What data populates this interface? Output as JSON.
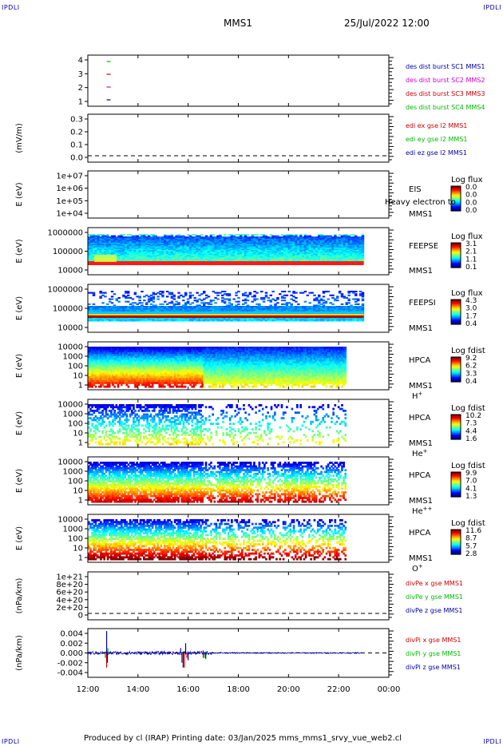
{
  "corner_mark": "IPDLI",
  "header": {
    "spacecraft": "MMS1",
    "datetime": "25/Jul/2022 12:00"
  },
  "footer": {
    "text": "Produced by cl (IRAP)   Printing date: 03/Jan/2025   mms_mms1_srvy_vue_web2.cl"
  },
  "colors": {
    "red": "#cc0000",
    "green": "#00bb00",
    "blue": "#0000aa",
    "magenta": "#cc00cc"
  },
  "x_axis": {
    "ticks": [
      "12:00",
      "14:00",
      "16:00",
      "18:00",
      "20:00",
      "22:00",
      "00:00"
    ],
    "range_hours": [
      12,
      24
    ]
  },
  "chart_data": [
    {
      "id": "des",
      "type": "scatter",
      "ylim": [
        0.5,
        4.5
      ],
      "yticks": [
        "4",
        "3",
        "2",
        "1"
      ],
      "ylabel": "",
      "series": [
        {
          "name": "des dist burst SC1 MMS1",
          "color": "#0000aa",
          "x": [
            12.75
          ],
          "y": [
            1
          ]
        },
        {
          "name": "des dist burst SC2 MMS2",
          "color": "#cc00cc",
          "x": [
            12.75
          ],
          "y": [
            2
          ]
        },
        {
          "name": "des dist burst SC3 MMS3",
          "color": "#cc0000",
          "x": [
            12.75
          ],
          "y": [
            3
          ]
        },
        {
          "name": "des dist burst SC4 MMS4",
          "color": "#00bb00",
          "x": [
            12.75
          ],
          "y": [
            4
          ]
        }
      ]
    },
    {
      "id": "edi",
      "type": "line",
      "ylabel": "(mV/m)",
      "yticks": [
        "0.3",
        "0.2",
        "0.1",
        "0.0"
      ],
      "ylim": [
        0,
        0.35
      ],
      "series": [
        {
          "name": "edi ex gse l2 MMS1",
          "color": "#cc0000"
        },
        {
          "name": "edi ey gse l2 MMS1",
          "color": "#00bb00"
        },
        {
          "name": "edi ez gse l2 MMS1",
          "color": "#0000aa"
        }
      ]
    },
    {
      "id": "eis",
      "type": "heatmap",
      "ylabel": "E (eV)",
      "yticks": [
        "1e+07",
        "1e+06",
        "1e+05",
        "1e+04"
      ],
      "instrument": [
        "EIS",
        "MMS1"
      ],
      "overlay": "Heavy electron to",
      "cbar_title": "Log flux",
      "cbar_ticks": [
        "0.0",
        "0.0",
        "0.0",
        "0.0"
      ]
    },
    {
      "id": "feepse",
      "type": "heatmap",
      "ylabel": "E (eV)",
      "yticks": [
        "1000000",
        "100000",
        "10000"
      ],
      "instrument": [
        "FEEPSE",
        "MMS1"
      ],
      "cbar_title": "Log flux",
      "cbar_ticks": [
        "3.1",
        "2.1",
        "1.1",
        "0.1"
      ],
      "x_end": 23.0
    },
    {
      "id": "feepsi",
      "type": "heatmap",
      "ylabel": "E (eV)",
      "yticks": [
        "1000000",
        "100000",
        "10000"
      ],
      "instrument": [
        "FEEPSI",
        "MMS1"
      ],
      "cbar_title": "Log flux",
      "cbar_ticks": [
        "4.3",
        "3.0",
        "1.7",
        "0.4"
      ],
      "x_end": 23.0
    },
    {
      "id": "hpca_h",
      "type": "heatmap",
      "ylabel": "E (eV)",
      "yticks": [
        "10000",
        "1000",
        "100",
        "10",
        "1"
      ],
      "instrument": [
        "HPCA",
        "MMS1"
      ],
      "species": "H",
      "charge": "+",
      "cbar_title": "Log fdist",
      "cbar_ticks": [
        "9.2",
        "6.2",
        "3.3",
        "0.4"
      ],
      "x_end": 22.3
    },
    {
      "id": "hpca_he",
      "type": "heatmap",
      "ylabel": "E (eV)",
      "yticks": [
        "10000",
        "1000",
        "100",
        "10",
        "1"
      ],
      "instrument": [
        "HPCA",
        "MMS1"
      ],
      "species": "He",
      "charge": "+",
      "cbar_title": "Log fdist",
      "cbar_ticks": [
        "10.2",
        "7.3",
        "4.4",
        "1.6"
      ],
      "x_end": 22.3
    },
    {
      "id": "hpca_he2",
      "type": "heatmap",
      "ylabel": "E (eV)",
      "yticks": [
        "10000",
        "1000",
        "100",
        "10",
        "1"
      ],
      "instrument": [
        "HPCA",
        "MMS1"
      ],
      "species": "He",
      "charge": "++",
      "cbar_title": "Log fdist",
      "cbar_ticks": [
        "9.9",
        "7.0",
        "4.1",
        "1.3"
      ],
      "x_end": 22.3
    },
    {
      "id": "hpca_o",
      "type": "heatmap",
      "ylabel": "E (eV)",
      "yticks": [
        "10000",
        "1000",
        "100",
        "10",
        "1"
      ],
      "instrument": [
        "HPCA",
        "MMS1"
      ],
      "species": "O",
      "charge": "+",
      "cbar_title": "Log fdist",
      "cbar_ticks": [
        "11.6",
        "8.7",
        "5.7",
        "2.8"
      ],
      "x_end": 22.3
    },
    {
      "id": "divpe",
      "type": "line",
      "ylabel": "(nPa/km)",
      "yticks": [
        "1e+21",
        "8e+20",
        "6e+20",
        "4e+20",
        "2e+20",
        "0"
      ],
      "ylim": [
        0,
        1e+21
      ],
      "series": [
        {
          "name": "divPe x gse MMS1",
          "color": "#cc0000"
        },
        {
          "name": "divPe y gse MMS1",
          "color": "#00bb00"
        },
        {
          "name": "divPe z gse MMS1",
          "color": "#0000aa"
        }
      ]
    },
    {
      "id": "divpi",
      "type": "line",
      "ylabel": "(nPa/km)",
      "yticks": [
        "0.004",
        "0.002",
        "0.000",
        "-0.002",
        "-0.004"
      ],
      "ylim": [
        -0.005,
        0.005
      ],
      "series": [
        {
          "name": "divPi x gse MMS1",
          "color": "#cc0000",
          "x": [
            12.7,
            12.75,
            12.8,
            15.75,
            15.85,
            15.95,
            16.6,
            16.7
          ],
          "y": [
            -0.001,
            -0.003,
            0.0,
            -0.002,
            -0.003,
            -0.001,
            -0.001,
            0.0
          ]
        },
        {
          "name": "divPi y gse MMS1",
          "color": "#00bb00",
          "x": [
            12.7,
            12.8,
            15.8,
            15.9,
            16.65
          ],
          "y": [
            -0.001,
            0.001,
            -0.002,
            0.001,
            -0.001
          ]
        },
        {
          "name": "divPi z gse MMS1",
          "color": "#0000aa",
          "x": [
            12.7,
            12.75,
            12.78,
            12.8,
            15.7,
            15.8,
            15.9,
            16.0,
            16.6,
            16.7
          ],
          "y": [
            0.0,
            0.0045,
            -0.002,
            0.0,
            0.001,
            -0.003,
            0.002,
            -0.0015,
            0.0005,
            -0.0012
          ]
        }
      ]
    }
  ]
}
